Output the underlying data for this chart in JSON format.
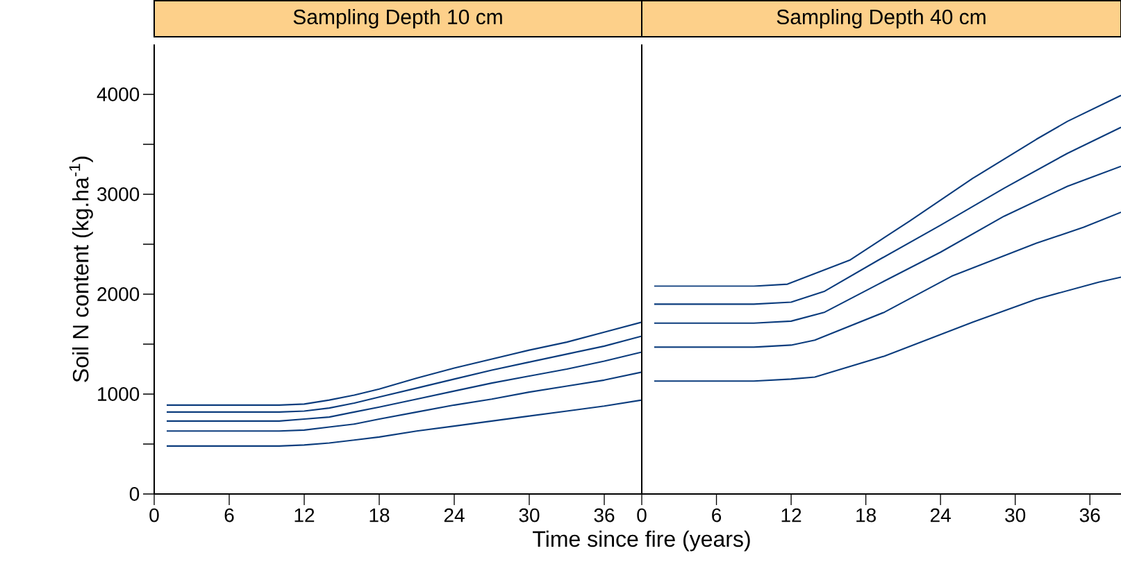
{
  "chart_data": [
    {
      "type": "line",
      "title": "Sampling Depth 10 cm",
      "xlabel": "Time since fire (years)",
      "ylabel": "Soil N content (kg.ha$^{-1}$)",
      "xlim": [
        0,
        39
      ],
      "ylim": [
        0,
        4500
      ],
      "xticks": [
        0,
        6,
        12,
        18,
        24,
        30,
        36
      ],
      "yticks": [
        0,
        1000,
        2000,
        3000,
        4000
      ],
      "grid": false,
      "marker": "none",
      "line_style": "solid",
      "x": [
        1,
        10,
        12,
        14,
        16,
        18,
        21,
        24,
        27,
        30,
        33,
        36,
        39
      ],
      "series": [
        {
          "color": "#0b3c7d",
          "values": [
            890,
            890,
            900,
            940,
            990,
            1050,
            1160,
            1260,
            1350,
            1440,
            1520,
            1620,
            1720
          ]
        },
        {
          "color": "#0b3c7d",
          "values": [
            820,
            820,
            830,
            860,
            910,
            970,
            1060,
            1150,
            1240,
            1320,
            1400,
            1480,
            1580
          ]
        },
        {
          "color": "#0b3c7d",
          "values": [
            730,
            730,
            750,
            770,
            820,
            870,
            950,
            1030,
            1110,
            1180,
            1250,
            1330,
            1420
          ]
        },
        {
          "color": "#0b3c7d",
          "values": [
            630,
            630,
            640,
            670,
            700,
            750,
            820,
            890,
            950,
            1020,
            1080,
            1140,
            1220
          ]
        },
        {
          "color": "#0b3c7d",
          "values": [
            480,
            480,
            490,
            510,
            540,
            570,
            630,
            680,
            730,
            780,
            830,
            880,
            940
          ]
        }
      ]
    },
    {
      "type": "line",
      "title": "Sampling Depth 40 cm",
      "xlim": [
        0,
        38.5
      ],
      "ylim": [
        0,
        4500
      ],
      "xticks": [
        0,
        6,
        12,
        18,
        24,
        30,
        36
      ],
      "tick_labels": "x",
      "grid": false,
      "marker": "none",
      "line_style": "solid",
      "series": [
        {
          "color": "#0b3c7d",
          "x": [
            1,
            9,
            11.7,
            16.7,
            21.5,
            26.6,
            31.7,
            34.2,
            38.5
          ],
          "values": [
            2080,
            2080,
            2100,
            2340,
            2730,
            3160,
            3550,
            3730,
            3990
          ]
        },
        {
          "color": "#0b3c7d",
          "x": [
            1,
            9,
            12,
            14.7,
            19,
            24,
            29.1,
            34.2,
            38.5
          ],
          "values": [
            1900,
            1900,
            1920,
            2030,
            2340,
            2690,
            3060,
            3410,
            3670
          ]
        },
        {
          "color": "#0b3c7d",
          "x": [
            1,
            9,
            12,
            14.7,
            19,
            24,
            29.1,
            34.2,
            38.5
          ],
          "values": [
            1710,
            1710,
            1730,
            1820,
            2100,
            2420,
            2780,
            3080,
            3280
          ]
        },
        {
          "color": "#0b3c7d",
          "x": [
            1,
            9,
            12,
            13.9,
            19.5,
            24.9,
            31.7,
            35.5,
            38.5
          ],
          "values": [
            1470,
            1470,
            1490,
            1540,
            1820,
            2180,
            2510,
            2670,
            2820
          ]
        },
        {
          "color": "#0b3c7d",
          "x": [
            1,
            9,
            12,
            13.9,
            19.5,
            26.6,
            31.7,
            36.7,
            38.5
          ],
          "values": [
            1130,
            1130,
            1150,
            1170,
            1380,
            1720,
            1950,
            2120,
            2170
          ]
        }
      ]
    }
  ]
}
